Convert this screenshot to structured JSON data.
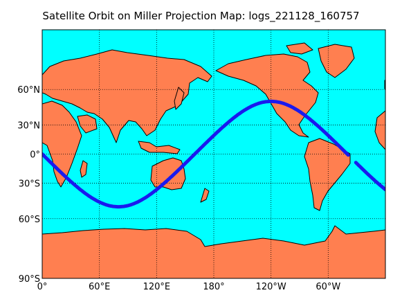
{
  "title": "Satellite Orbit on Miller Projection Map: logs_221128_160757",
  "map": {
    "projection": "Miller Cylindrical",
    "lon_range": [
      0,
      360
    ],
    "lat_range": [
      -90,
      90
    ],
    "grid": "dotted",
    "colors": {
      "ocean": "#00ffff",
      "land": "#ff7f50",
      "coastline": "#000000",
      "grid": "#000000",
      "orbit": "#1a1aee"
    }
  },
  "y_ticks": [
    {
      "lat": 60,
      "label": "60°N"
    },
    {
      "lat": 30,
      "label": "30°N"
    },
    {
      "lat": 0,
      "label": "0°"
    },
    {
      "lat": -30,
      "label": "30°S"
    },
    {
      "lat": -60,
      "label": "60°S"
    },
    {
      "lat": -90,
      "label": "90°S"
    }
  ],
  "x_ticks": [
    {
      "lon": 0,
      "label": "0°"
    },
    {
      "lon": 60,
      "label": "60°E"
    },
    {
      "lon": 120,
      "label": "120°E"
    },
    {
      "lon": 180,
      "label": "180°"
    },
    {
      "lon": 240,
      "label": "120°W"
    },
    {
      "lon": 300,
      "label": "60°W"
    }
  ],
  "orbit": {
    "amplitude_deg": 51,
    "start_lon": 0,
    "end_lon": 360,
    "gap_lon": [
      321,
      329
    ]
  }
}
